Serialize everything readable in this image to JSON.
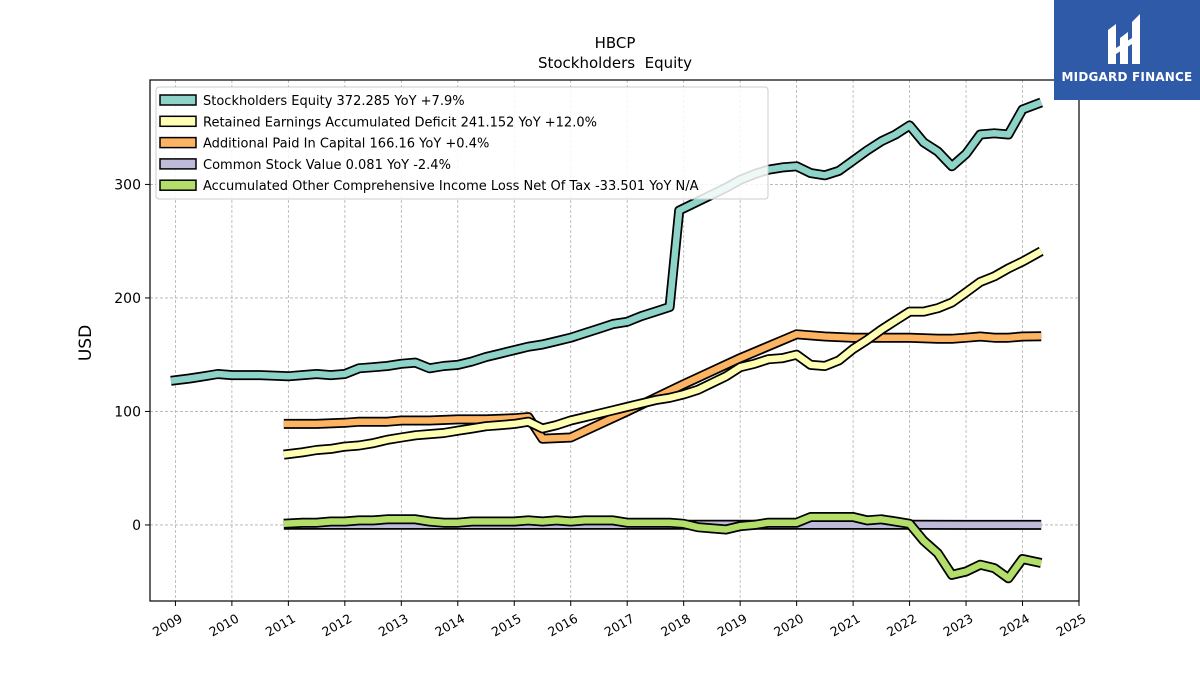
{
  "brand": {
    "name": "MIDGARD FINANCE",
    "bg": "#2e5aa8"
  },
  "chart_data": {
    "type": "line",
    "title": "HBCP",
    "subtitle": "Stockholders  Equity",
    "ylabel": "USD",
    "xlabel": "",
    "xlim": [
      2008.55,
      2025.0
    ],
    "ylim": [
      -67,
      392
    ],
    "xticks": [
      2009,
      2010,
      2011,
      2012,
      2013,
      2014,
      2015,
      2016,
      2017,
      2018,
      2019,
      2020,
      2021,
      2022,
      2023,
      2024,
      2025
    ],
    "yticks": [
      0,
      100,
      200,
      300
    ],
    "grid": true,
    "legend_position": "top-left",
    "series": [
      {
        "name": "Stockholders Equity  372.285 YoY +7.9%",
        "color": "#8dd3c7",
        "points": [
          [
            2008.92,
            127
          ],
          [
            2009.25,
            129
          ],
          [
            2009.5,
            131
          ],
          [
            2009.75,
            133
          ],
          [
            2010.0,
            132
          ],
          [
            2010.5,
            132
          ],
          [
            2011.0,
            131
          ],
          [
            2011.25,
            132
          ],
          [
            2011.5,
            133
          ],
          [
            2011.75,
            132
          ],
          [
            2012.0,
            133
          ],
          [
            2012.25,
            138
          ],
          [
            2012.5,
            139
          ],
          [
            2012.75,
            140
          ],
          [
            2013.0,
            142
          ],
          [
            2013.25,
            143
          ],
          [
            2013.5,
            138
          ],
          [
            2013.75,
            140
          ],
          [
            2014.0,
            141
          ],
          [
            2014.25,
            144
          ],
          [
            2014.5,
            148
          ],
          [
            2014.75,
            151
          ],
          [
            2015.0,
            154
          ],
          [
            2015.25,
            157
          ],
          [
            2015.5,
            159
          ],
          [
            2015.75,
            162
          ],
          [
            2016.0,
            165
          ],
          [
            2016.25,
            169
          ],
          [
            2016.5,
            173
          ],
          [
            2016.75,
            177
          ],
          [
            2017.0,
            179
          ],
          [
            2017.25,
            184
          ],
          [
            2017.5,
            188
          ],
          [
            2017.75,
            192
          ],
          [
            2017.92,
            277
          ],
          [
            2018.25,
            285
          ],
          [
            2018.5,
            291
          ],
          [
            2018.75,
            297
          ],
          [
            2019.0,
            304
          ],
          [
            2019.25,
            309
          ],
          [
            2019.5,
            313
          ],
          [
            2019.75,
            315
          ],
          [
            2020.0,
            316
          ],
          [
            2020.25,
            310
          ],
          [
            2020.5,
            308
          ],
          [
            2020.75,
            312
          ],
          [
            2021.0,
            321
          ],
          [
            2021.25,
            330
          ],
          [
            2021.5,
            338
          ],
          [
            2021.75,
            344
          ],
          [
            2022.0,
            352
          ],
          [
            2022.25,
            337
          ],
          [
            2022.5,
            329
          ],
          [
            2022.75,
            316
          ],
          [
            2023.0,
            327
          ],
          [
            2023.25,
            344
          ],
          [
            2023.5,
            345
          ],
          [
            2023.75,
            344
          ],
          [
            2024.0,
            366
          ],
          [
            2024.33,
            372.285
          ]
        ]
      },
      {
        "name": "Retained Earnings Accumulated Deficit  241.152 YoY +12.0%",
        "color": "#ffffb3",
        "points": [
          [
            2010.92,
            62
          ],
          [
            2011.25,
            64
          ],
          [
            2011.5,
            66
          ],
          [
            2011.75,
            67
          ],
          [
            2012.0,
            69
          ],
          [
            2012.25,
            70
          ],
          [
            2012.5,
            72
          ],
          [
            2012.75,
            75
          ],
          [
            2013.0,
            77
          ],
          [
            2013.25,
            79
          ],
          [
            2013.5,
            80
          ],
          [
            2013.75,
            81
          ],
          [
            2014.0,
            83
          ],
          [
            2014.25,
            85
          ],
          [
            2014.5,
            87
          ],
          [
            2014.75,
            88
          ],
          [
            2015.0,
            89
          ],
          [
            2015.25,
            91
          ],
          [
            2015.5,
            85
          ],
          [
            2015.75,
            88
          ],
          [
            2016.0,
            92
          ],
          [
            2016.25,
            95
          ],
          [
            2016.5,
            98
          ],
          [
            2016.75,
            101
          ],
          [
            2017.0,
            104
          ],
          [
            2017.25,
            107
          ],
          [
            2017.5,
            110
          ],
          [
            2017.75,
            112
          ],
          [
            2018.0,
            115
          ],
          [
            2018.25,
            119
          ],
          [
            2018.5,
            125
          ],
          [
            2018.75,
            131
          ],
          [
            2019.0,
            139
          ],
          [
            2019.25,
            142
          ],
          [
            2019.5,
            146
          ],
          [
            2019.75,
            147
          ],
          [
            2020.0,
            150
          ],
          [
            2020.25,
            141
          ],
          [
            2020.5,
            140
          ],
          [
            2020.75,
            145
          ],
          [
            2021.0,
            155
          ],
          [
            2021.25,
            163
          ],
          [
            2021.5,
            172
          ],
          [
            2021.75,
            180
          ],
          [
            2022.0,
            188
          ],
          [
            2022.25,
            188
          ],
          [
            2022.5,
            191
          ],
          [
            2022.75,
            196
          ],
          [
            2023.0,
            205
          ],
          [
            2023.25,
            214
          ],
          [
            2023.5,
            219
          ],
          [
            2023.75,
            226
          ],
          [
            2024.0,
            232
          ],
          [
            2024.33,
            241.152
          ]
        ]
      },
      {
        "name": "Additional Paid In Capital  166.16 YoY +0.4%",
        "color": "#fdb462",
        "points": [
          [
            2010.92,
            89
          ],
          [
            2011.5,
            89
          ],
          [
            2012.0,
            90
          ],
          [
            2012.25,
            91
          ],
          [
            2012.5,
            91
          ],
          [
            2012.75,
            91
          ],
          [
            2013.0,
            92
          ],
          [
            2013.25,
            92
          ],
          [
            2013.5,
            92
          ],
          [
            2014.0,
            93
          ],
          [
            2014.5,
            93
          ],
          [
            2015.0,
            94
          ],
          [
            2015.25,
            95
          ],
          [
            2015.5,
            76
          ],
          [
            2016.0,
            77
          ],
          [
            2017.0,
            100
          ],
          [
            2018.0,
            124
          ],
          [
            2019.0,
            147
          ],
          [
            2020.0,
            168
          ],
          [
            2020.5,
            166
          ],
          [
            2021.0,
            165
          ],
          [
            2021.5,
            165
          ],
          [
            2022.0,
            165
          ],
          [
            2022.5,
            164
          ],
          [
            2022.75,
            164
          ],
          [
            2023.0,
            165
          ],
          [
            2023.25,
            166
          ],
          [
            2023.5,
            165
          ],
          [
            2023.75,
            165
          ],
          [
            2024.0,
            166
          ],
          [
            2024.33,
            166.16
          ]
        ]
      },
      {
        "name": "Common Stock Value  0.081 YoY -2.4%",
        "color": "#bebada",
        "points": [
          [
            2010.92,
            0.1
          ],
          [
            2012.0,
            0.1
          ],
          [
            2013.0,
            0.1
          ],
          [
            2014.0,
            0.1
          ],
          [
            2015.0,
            0.1
          ],
          [
            2016.0,
            0.1
          ],
          [
            2017.0,
            0.1
          ],
          [
            2018.0,
            0.1
          ],
          [
            2019.0,
            0.1
          ],
          [
            2020.0,
            0.09
          ],
          [
            2021.0,
            0.09
          ],
          [
            2022.0,
            0.09
          ],
          [
            2023.0,
            0.08
          ],
          [
            2024.33,
            0.081
          ]
        ]
      },
      {
        "name": "Accumulated Other Comprehensive Income Loss Net Of Tax  -33.501 YoY N/A",
        "color": "#b3de69",
        "points": [
          [
            2010.92,
            1
          ],
          [
            2011.25,
            2
          ],
          [
            2011.5,
            2
          ],
          [
            2011.75,
            3
          ],
          [
            2012.0,
            3
          ],
          [
            2012.25,
            4
          ],
          [
            2012.5,
            4
          ],
          [
            2012.75,
            5
          ],
          [
            2013.0,
            5
          ],
          [
            2013.25,
            5
          ],
          [
            2013.5,
            3
          ],
          [
            2013.75,
            2
          ],
          [
            2014.0,
            2
          ],
          [
            2014.25,
            3
          ],
          [
            2014.5,
            3
          ],
          [
            2014.75,
            3
          ],
          [
            2015.0,
            3
          ],
          [
            2015.25,
            4
          ],
          [
            2015.5,
            3
          ],
          [
            2015.75,
            4
          ],
          [
            2016.0,
            3
          ],
          [
            2016.25,
            4
          ],
          [
            2016.5,
            4
          ],
          [
            2016.75,
            4
          ],
          [
            2017.0,
            2
          ],
          [
            2017.25,
            2
          ],
          [
            2017.5,
            2
          ],
          [
            2017.75,
            2
          ],
          [
            2018.0,
            1
          ],
          [
            2018.25,
            -2
          ],
          [
            2018.5,
            -3
          ],
          [
            2018.75,
            -4
          ],
          [
            2019.0,
            -1
          ],
          [
            2019.25,
            0
          ],
          [
            2019.5,
            2
          ],
          [
            2019.75,
            2
          ],
          [
            2020.0,
            2
          ],
          [
            2020.25,
            7
          ],
          [
            2020.5,
            7
          ],
          [
            2020.75,
            7
          ],
          [
            2021.0,
            7
          ],
          [
            2021.25,
            4
          ],
          [
            2021.5,
            5
          ],
          [
            2021.75,
            3
          ],
          [
            2022.0,
            1
          ],
          [
            2022.25,
            -14
          ],
          [
            2022.5,
            -25
          ],
          [
            2022.75,
            -44
          ],
          [
            2023.0,
            -41
          ],
          [
            2023.25,
            -35
          ],
          [
            2023.5,
            -38
          ],
          [
            2023.75,
            -47
          ],
          [
            2024.0,
            -30
          ],
          [
            2024.33,
            -33.501
          ]
        ]
      }
    ]
  }
}
